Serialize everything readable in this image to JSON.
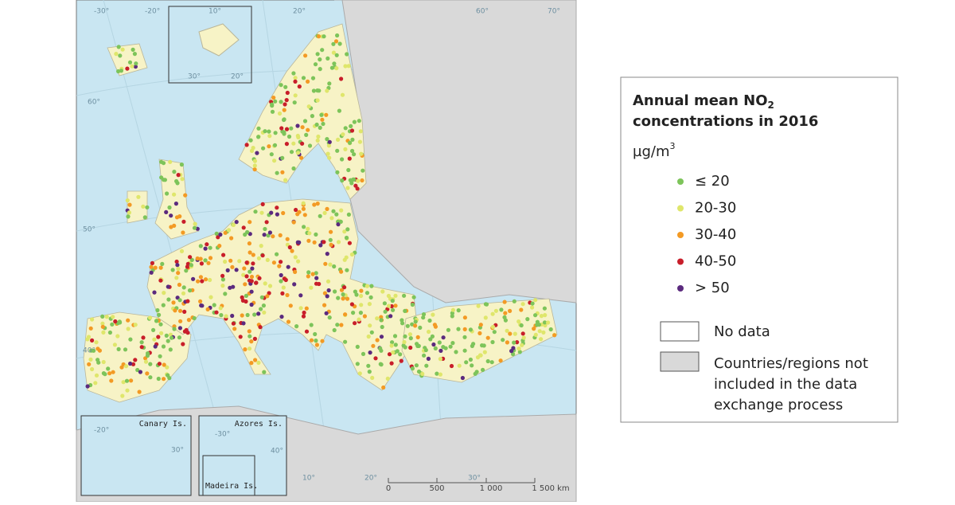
{
  "map": {
    "graticule_labels": [
      "-30°",
      "-20°",
      "10°",
      "20°",
      "60°",
      "70°",
      "60°",
      "50°",
      "40°",
      "10°",
      "20°",
      "30°",
      "20°",
      "30°"
    ],
    "insets": {
      "canary": "Canary Is.",
      "azores": "Azores Is.",
      "madeira": "Madeira Is.",
      "canary_lon": "-20°",
      "canary_lat": "30°",
      "azores_lat": "40°",
      "azores_lon": "-30°"
    },
    "scale_bar": [
      "0",
      "500",
      "1 000",
      "1 500 km"
    ]
  },
  "legend": {
    "title_line1": "Annual mean NO",
    "title_sub": "2",
    "title_line2": "concentrations in 2016",
    "unit": "µg/m",
    "unit_sup": "3",
    "items": [
      {
        "label": "≤ 20",
        "color": "#7dc45a"
      },
      {
        "label": "20-30",
        "color": "#dfe66b"
      },
      {
        "label": "30-40",
        "color": "#f39a24"
      },
      {
        "label": "40-50",
        "color": "#c81e2a"
      },
      {
        "label": "> 50",
        "color": "#5b2a7e"
      }
    ],
    "no_data": "No data",
    "not_included": [
      "Countries/regions not",
      "included in the data",
      "exchange process"
    ]
  }
}
